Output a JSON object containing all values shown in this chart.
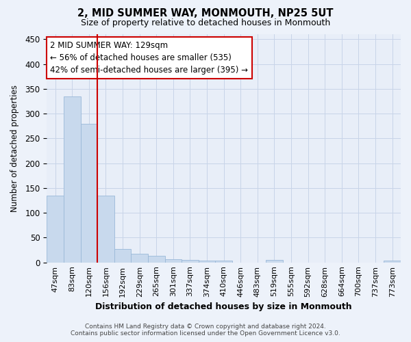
{
  "title": "2, MID SUMMER WAY, MONMOUTH, NP25 5UT",
  "subtitle": "Size of property relative to detached houses in Monmouth",
  "xlabel": "Distribution of detached houses by size in Monmouth",
  "ylabel": "Number of detached properties",
  "bar_color": "#c8d9ed",
  "bar_edge_color": "#9ab8d8",
  "categories": [
    "47sqm",
    "83sqm",
    "120sqm",
    "156sqm",
    "192sqm",
    "229sqm",
    "265sqm",
    "301sqm",
    "337sqm",
    "374sqm",
    "410sqm",
    "446sqm",
    "483sqm",
    "519sqm",
    "555sqm",
    "592sqm",
    "628sqm",
    "664sqm",
    "700sqm",
    "737sqm",
    "773sqm"
  ],
  "values": [
    135,
    335,
    280,
    135,
    27,
    18,
    13,
    7,
    5,
    4,
    4,
    0,
    0,
    5,
    0,
    0,
    0,
    0,
    0,
    0,
    4
  ],
  "property_line_x": 2.5,
  "annotation_line1": "2 MID SUMMER WAY: 129sqm",
  "annotation_line2": "← 56% of detached houses are smaller (535)",
  "annotation_line3": "42% of semi-detached houses are larger (395) →",
  "annotation_color": "#cc0000",
  "ylim": [
    0,
    460
  ],
  "yticks": [
    0,
    50,
    100,
    150,
    200,
    250,
    300,
    350,
    400,
    450
  ],
  "grid_color": "#c8d4e8",
  "bg_color": "#e8eef8",
  "fig_bg_color": "#edf2fa",
  "footer_line1": "Contains HM Land Registry data © Crown copyright and database right 2024.",
  "footer_line2": "Contains public sector information licensed under the Open Government Licence v3.0."
}
